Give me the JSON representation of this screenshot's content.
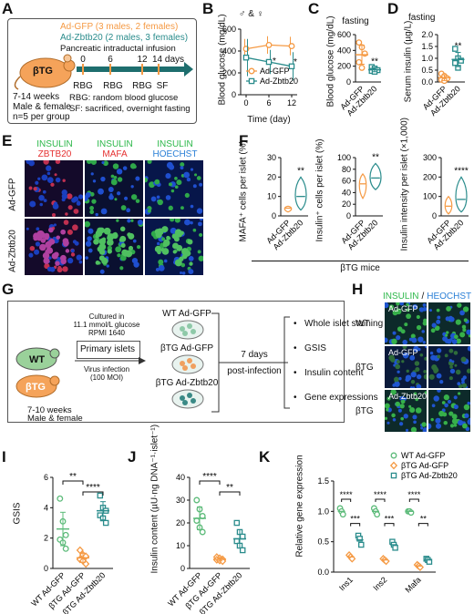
{
  "colors": {
    "gfp": "#f59a44",
    "zbtb20": "#2a8c8c",
    "wt": "#5dbb7a",
    "insulin": "#2db84a",
    "zbtb20_stain": "#e53030",
    "mafa": "#e53030",
    "hoechst": "#2a7fd6"
  },
  "panel_labels": [
    "A",
    "B",
    "C",
    "D",
    "E",
    "F",
    "G",
    "H",
    "I",
    "J",
    "K"
  ],
  "A": {
    "gfp_group": "Ad-GFP (3 males, 2 females)",
    "zbtb20_group": "Ad-Zbtb20 (2 males, 3 females)",
    "infusion": "Pancreatic intraductal infusion",
    "mouse": "βTG",
    "age": "7-14 weeks",
    "sex": "Male & female",
    "n": "n=5 per group",
    "days": [
      "0",
      "6",
      "12",
      "14 days"
    ],
    "events": [
      "RBG",
      "RBG",
      "RBG",
      "SF"
    ],
    "rbg_def": "RBG: random blood glucose",
    "sf_def": "SF: sacrificed, overnight fasting"
  },
  "E": {
    "col_headers": [
      [
        "INSULIN",
        "ZBTB20"
      ],
      [
        "INSULIN",
        "MAFA"
      ],
      [
        "INSULIN",
        "HOECHST"
      ]
    ],
    "row_labels": [
      "Ad-GFP",
      "Ad-Zbtb20"
    ]
  },
  "F_footer": "βTG mice",
  "G": {
    "cultured": "Cultured in",
    "medium1": "11.1 mmol/L glucose",
    "medium2": "RPMI 1640",
    "primary": "Primary islets",
    "virus1": "Virus infection",
    "virus2": "(100 MOI)",
    "wt": "WT",
    "btg": "βTG",
    "age": "7-10 weeks",
    "sex": "Male & female",
    "groups": [
      "WT Ad-GFP",
      "βTG Ad-GFP",
      "βTG Ad-Zbtb20"
    ],
    "days": "7 days",
    "post": "post-infection",
    "outputs": [
      "Whole islet staining",
      "GSIS",
      "Insulin content",
      "Gene expressions"
    ]
  },
  "H": {
    "header_a": "INSULIN",
    "header_sep": "/",
    "header_b": "HEOCHST",
    "row_labels": [
      "WT",
      "βTG",
      "βTG"
    ],
    "tile_labels": [
      "Ad-GFP",
      "Ad-GFP",
      "Ad-Zbtb20"
    ]
  },
  "chart_data": [
    {
      "panel": "B",
      "type": "line",
      "header": "♂ & ♀",
      "ylabel": "Blood glucose (mg/dL)",
      "xlabel": "Time (day)",
      "x": [
        0,
        6,
        12
      ],
      "ylim": [
        0,
        600
      ],
      "yticks": [
        "0",
        "200",
        "400",
        "600"
      ],
      "xticks": [
        "0",
        "6",
        "12"
      ],
      "series": [
        {
          "name": "Ad-GFP",
          "values": [
            420,
            455,
            445
          ],
          "err": [
            90,
            80,
            85
          ]
        },
        {
          "name": "Ad-Zbtb20",
          "values": [
            340,
            300,
            260
          ],
          "err": [
            170,
            110,
            130
          ]
        }
      ],
      "marks": [
        "*",
        "*"
      ],
      "legend": "bottom-right"
    },
    {
      "panel": "C",
      "type": "scatter",
      "title": "fasting",
      "ylabel": "Blood glucose (mg/dL)",
      "categories": [
        "Ad-GFP",
        "Ad-Zbtb20"
      ],
      "ylim": [
        0,
        600
      ],
      "yticks": [
        "0",
        "200",
        "400",
        "600"
      ],
      "points": [
        [
          500,
          440,
          360,
          250,
          180
        ],
        [
          190,
          170,
          150,
          140,
          130
        ]
      ],
      "mean": [
        345,
        155
      ],
      "err": [
        120,
        25
      ],
      "sig": "**"
    },
    {
      "panel": "D",
      "type": "scatter",
      "title": "fasting",
      "ylabel": "Serum insulin (µg/L)",
      "categories": [
        "Ad-GFP",
        "Ad-Zbtb20"
      ],
      "ylim": [
        0,
        2.0
      ],
      "yticks": [
        "0.0",
        "0.5",
        "1.0",
        "1.5",
        "2.0"
      ],
      "points": [
        [
          0.35,
          0.25,
          0.15,
          0.1,
          0.05
        ],
        [
          1.4,
          1.0,
          0.9,
          0.8,
          0.6
        ]
      ],
      "mean": [
        0.18,
        0.95
      ],
      "err": [
        0.12,
        0.3
      ],
      "sig": "**"
    },
    {
      "panel": "F1",
      "type": "violin",
      "ylabel": "MAFA⁺ cells per islet (%)",
      "categories": [
        "Ad-GFP",
        "Ad-Zbtb20"
      ],
      "ylim": [
        0,
        30
      ],
      "yticks": [
        "0",
        "10",
        "20",
        "30"
      ],
      "medians": [
        4,
        10
      ],
      "ranges": [
        [
          2,
          5
        ],
        [
          3,
          20
        ]
      ],
      "sig": "**"
    },
    {
      "panel": "F2",
      "type": "violin",
      "ylabel": "Insulin⁺ cells per islet (%)",
      "categories": [
        "Ad-GFP",
        "Ad-Zbtb20"
      ],
      "ylim": [
        0,
        100
      ],
      "yticks": [
        "0",
        "20",
        "40",
        "60",
        "80",
        "100"
      ],
      "medians": [
        55,
        65
      ],
      "ranges": [
        [
          30,
          72
        ],
        [
          45,
          90
        ]
      ],
      "sig": "**"
    },
    {
      "panel": "F3",
      "type": "violin",
      "ylabel": "Insulin intensity per islet (×1,000)",
      "categories": [
        "Ad-GFP",
        "Ad-Zbtb20"
      ],
      "ylim": [
        0,
        300
      ],
      "yticks": [
        "0",
        "100",
        "200",
        "300"
      ],
      "medians": [
        50,
        85
      ],
      "ranges": [
        [
          10,
          100
        ],
        [
          20,
          200
        ]
      ],
      "sig": "****"
    },
    {
      "panel": "I",
      "type": "scatter",
      "ylabel": "GSIS",
      "categories": [
        "WT Ad-GFP",
        "βTG Ad-GFP",
        "βTG Ad-Zbtb20"
      ],
      "ylim": [
        0,
        6
      ],
      "yticks": [
        "0",
        "2",
        "4",
        "6"
      ],
      "points": [
        [
          4.6,
          3.1,
          2.2,
          1.9,
          1.7,
          1.3
        ],
        [
          1.2,
          0.9,
          0.8,
          0.6,
          0.5,
          0.3
        ],
        [
          4.8,
          4.0,
          3.8,
          3.5,
          3.3,
          3.0
        ]
      ],
      "mean": [
        2.6,
        0.7,
        3.8
      ],
      "err": [
        1.1,
        0.3,
        0.6
      ],
      "sig": [
        "**",
        "****"
      ]
    },
    {
      "panel": "J",
      "type": "scatter",
      "ylabel": "Insulin content (µU·ng DNA⁻¹·islet⁻¹)",
      "categories": [
        "WT Ad-GFP",
        "βTG Ad-GFP",
        "βTG Ad-Zbtb20"
      ],
      "ylim": [
        0,
        40
      ],
      "yticks": [
        "0",
        "10",
        "20",
        "30",
        "40"
      ],
      "points": [
        [
          30,
          26,
          23,
          21,
          18,
          16
        ],
        [
          5,
          4.5,
          4,
          3.8,
          3.5,
          3.2
        ],
        [
          20,
          16,
          14,
          12,
          10,
          8
        ]
      ],
      "mean": [
        22,
        4,
        13
      ],
      "err": [
        5,
        0.7,
        4
      ],
      "sig": [
        "****",
        "**"
      ]
    },
    {
      "panel": "K",
      "type": "scatter",
      "ylabel": "Relative gene expression",
      "categories": [
        "Ins1",
        "Ins2",
        "Mafa"
      ],
      "ylim": [
        0,
        1.5
      ],
      "yticks": [
        "0.0",
        "0.5",
        "1.0",
        "1.5"
      ],
      "series": [
        {
          "name": "WT Ad-GFP",
          "points": [
            [
              1.05,
              1.0,
              0.95
            ],
            [
              1.05,
              1.0,
              0.95
            ],
            [
              1.0,
              1.0,
              0.98
            ]
          ],
          "mean": [
            1.0,
            1.0,
            1.0
          ]
        },
        {
          "name": "βTG Ad-GFP",
          "points": [
            [
              0.28,
              0.25,
              0.22
            ],
            [
              0.22,
              0.2,
              0.18
            ],
            [
              0.12,
              0.1,
              0.08
            ]
          ],
          "mean": [
            0.25,
            0.2,
            0.1
          ]
        },
        {
          "name": "βTG Ad-Zbtb20",
          "points": [
            [
              0.6,
              0.55,
              0.45
            ],
            [
              0.5,
              0.45,
              0.4
            ],
            [
              0.22,
              0.2,
              0.17
            ]
          ],
          "mean": [
            0.53,
            0.45,
            0.2
          ]
        }
      ],
      "sig": [
        [
          "****",
          "***"
        ],
        [
          "****",
          "***"
        ],
        [
          "****",
          "**"
        ]
      ],
      "legend": "top-right"
    }
  ]
}
